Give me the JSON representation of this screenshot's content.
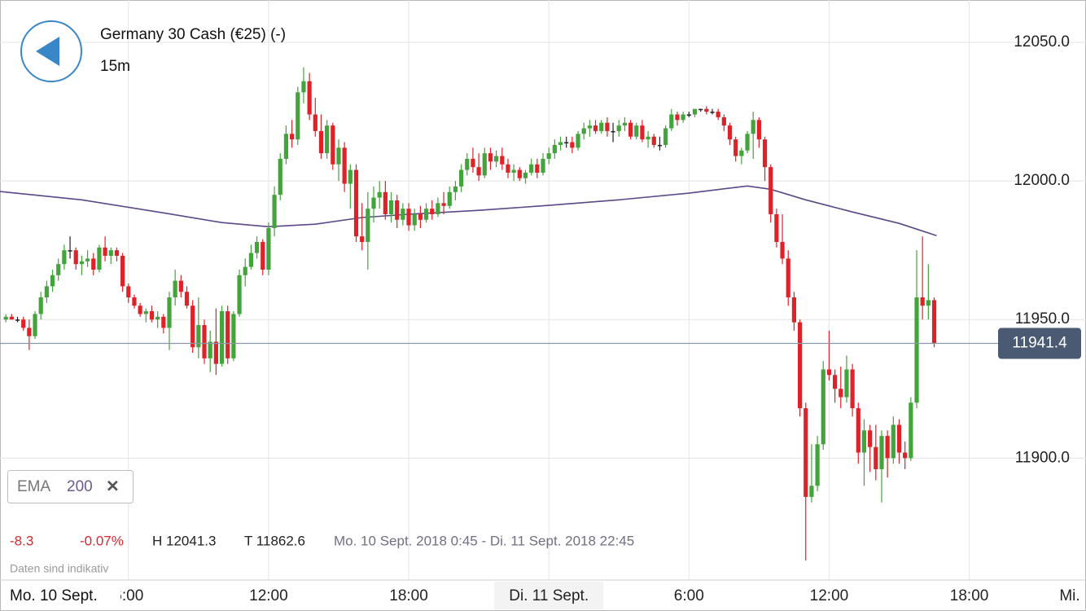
{
  "chart_data": {
    "type": "candlestick",
    "title": "Germany 30 Cash (€25) (-)",
    "subtitle": "15m",
    "x_start_label": "Mo. 10 Sept.",
    "indicator": {
      "name": "EMA",
      "period": 200
    },
    "stats": [
      "-8.3",
      "-0.07%",
      "H 12041.3",
      "T 11862.6",
      "Mo. 10 Sept. 2018 0:45 - Di. 11 Sept. 2018 22:45"
    ],
    "note": "Daten sind indikativ",
    "last_price": 11941.4,
    "up_color": "#43a43c",
    "down_color": "#de2229",
    "flat_color": "#222222",
    "xlim": [
      0.5,
      47
    ],
    "ylim": [
      11856,
      12065.3
    ],
    "xticks": [
      {
        "value": 6,
        "label": "6:00"
      },
      {
        "value": 12,
        "label": "12:00"
      },
      {
        "value": 18,
        "label": "18:00"
      },
      {
        "value": 24,
        "label": "Di. 11 Sept."
      },
      {
        "value": 30,
        "label": "6:00"
      },
      {
        "value": 36,
        "label": "12:00"
      },
      {
        "value": 42,
        "label": "18:00"
      },
      {
        "value": 48,
        "label": "Mi."
      }
    ],
    "yticks": [
      {
        "value": 11900,
        "label": "11900.0"
      },
      {
        "value": 11950,
        "label": "11950.0"
      },
      {
        "value": 12000,
        "label": "12000.0"
      },
      {
        "value": 12050,
        "label": "12050.0"
      }
    ],
    "grid": true,
    "x": [
      0.75,
      1,
      1.25,
      1.5,
      1.75,
      2,
      2.25,
      2.5,
      2.75,
      3,
      3.25,
      3.5,
      3.75,
      4,
      4.25,
      4.5,
      4.75,
      5,
      5.25,
      5.5,
      5.75,
      6,
      6.25,
      6.5,
      6.75,
      7,
      7.25,
      7.5,
      7.75,
      8,
      8.25,
      8.5,
      8.75,
      9,
      9.25,
      9.5,
      9.75,
      10,
      10.25,
      10.5,
      10.75,
      11,
      11.25,
      11.5,
      11.75,
      12,
      12.25,
      12.5,
      12.75,
      13,
      13.25,
      13.5,
      13.75,
      14,
      14.25,
      14.5,
      14.75,
      15,
      15.25,
      15.5,
      15.75,
      16,
      16.25,
      16.5,
      16.75,
      17,
      17.25,
      17.5,
      17.75,
      18,
      18.25,
      18.5,
      18.75,
      19,
      19.25,
      19.5,
      19.75,
      20,
      20.25,
      20.5,
      20.75,
      21,
      21.25,
      21.5,
      21.75,
      22,
      22.25,
      22.5,
      22.75,
      23,
      23.25,
      23.5,
      23.75,
      24,
      24.25,
      24.5,
      24.75,
      25,
      25.25,
      25.5,
      25.75,
      26,
      26.25,
      26.5,
      26.75,
      27,
      27.25,
      27.5,
      27.75,
      28,
      28.25,
      28.5,
      28.75,
      29,
      29.25,
      29.5,
      29.75,
      30,
      30.25,
      30.5,
      30.75,
      31,
      31.25,
      31.5,
      31.75,
      32,
      32.25,
      32.5,
      32.75,
      33,
      33.25,
      33.5,
      33.75,
      34,
      34.25,
      34.5,
      34.75,
      35,
      35.25,
      35.5,
      35.75,
      36,
      36.25,
      36.5,
      36.75,
      37,
      37.25,
      37.5,
      37.75,
      38,
      38.25,
      38.5,
      38.75,
      39,
      39.25,
      39.5,
      39.75,
      40,
      40.25,
      40.5
    ],
    "ohlc": [
      [
        11950,
        11952,
        11949,
        11951
      ],
      [
        11951,
        11952,
        11950,
        11950
      ],
      [
        11950,
        11951,
        11949,
        11950
      ],
      [
        11950,
        11951,
        11946,
        11947
      ],
      [
        11947,
        11950,
        11939,
        11944
      ],
      [
        11944,
        11953,
        11943,
        11952
      ],
      [
        11952,
        11960,
        11950,
        11958
      ],
      [
        11958,
        11964,
        11956,
        11962
      ],
      [
        11962,
        11968,
        11960,
        11966
      ],
      [
        11966,
        11972,
        11964,
        11970
      ],
      [
        11970,
        11977,
        11968,
        11975
      ],
      [
        11975,
        11980,
        11972,
        11975
      ],
      [
        11975,
        11976,
        11968,
        11970
      ],
      [
        11970,
        11973,
        11966,
        11971
      ],
      [
        11971,
        11975,
        11969,
        11972
      ],
      [
        11972,
        11974,
        11966,
        11968
      ],
      [
        11968,
        11977,
        11967,
        11976
      ],
      [
        11976,
        11980,
        11971,
        11973
      ],
      [
        11973,
        11976,
        11970,
        11975
      ],
      [
        11975,
        11976,
        11971,
        11973
      ],
      [
        11973,
        11974,
        11960,
        11962
      ],
      [
        11962,
        11963,
        11956,
        11958
      ],
      [
        11958,
        11959,
        11954,
        11955
      ],
      [
        11955,
        11956,
        11951,
        11952
      ],
      [
        11952,
        11954,
        11949,
        11953
      ],
      [
        11953,
        11955,
        11949,
        11950
      ],
      [
        11950,
        11953,
        11947,
        11951
      ],
      [
        11951,
        11952,
        11945,
        11947
      ],
      [
        11947,
        11960,
        11939,
        11958
      ],
      [
        11958,
        11968,
        11955,
        11964
      ],
      [
        11964,
        11966,
        11958,
        11960
      ],
      [
        11960,
        11962,
        11954,
        11955
      ],
      [
        11955,
        11957,
        11938,
        11940
      ],
      [
        11940,
        11958,
        11936,
        11948
      ],
      [
        11948,
        11950,
        11934,
        11936
      ],
      [
        11936,
        11946,
        11931,
        11942
      ],
      [
        11942,
        11954,
        11930,
        11934
      ],
      [
        11934,
        11955,
        11933,
        11953
      ],
      [
        11953,
        11955,
        11934,
        11936
      ],
      [
        11936,
        11953,
        11935,
        11952
      ],
      [
        11952,
        11968,
        11951,
        11966
      ],
      [
        11966,
        11972,
        11962,
        11969
      ],
      [
        11969,
        11977,
        11968,
        11974
      ],
      [
        11974,
        11980,
        11972,
        11978
      ],
      [
        11978,
        11979,
        11966,
        11968
      ],
      [
        11968,
        11985,
        11966,
        11983
      ],
      [
        11983,
        11998,
        11980,
        11995
      ],
      [
        11995,
        12010,
        11993,
        12008
      ],
      [
        12008,
        12020,
        12006,
        12017
      ],
      [
        12017,
        12022,
        12012,
        12015
      ],
      [
        12015,
        12034,
        12013,
        12032
      ],
      [
        12032,
        12041,
        12028,
        12036
      ],
      [
        12036,
        12039,
        12022,
        12024
      ],
      [
        12024,
        12030,
        12016,
        12018
      ],
      [
        12018,
        12024,
        12008,
        12010
      ],
      [
        12010,
        12022,
        12008,
        12020
      ],
      [
        12020,
        12021,
        12004,
        12006
      ],
      [
        12006,
        12015,
        12000,
        12012
      ],
      [
        12012,
        12014,
        11996,
        11999
      ],
      [
        11999,
        12006,
        11990,
        12004
      ],
      [
        12004,
        12006,
        11978,
        11980
      ],
      [
        11980,
        11992,
        11975,
        11978
      ],
      [
        11978,
        11996,
        11968,
        11990
      ],
      [
        11990,
        11998,
        11985,
        11994
      ],
      [
        11994,
        12000,
        11990,
        11996
      ],
      [
        11996,
        12000,
        11986,
        11988
      ],
      [
        11988,
        11996,
        11985,
        11993
      ],
      [
        11993,
        11995,
        11983,
        11986
      ],
      [
        11986,
        11992,
        11984,
        11990
      ],
      [
        11990,
        11992,
        11982,
        11984
      ],
      [
        11984,
        11990,
        11982,
        11988
      ],
      [
        11988,
        11991,
        11983,
        11986
      ],
      [
        11986,
        11992,
        11985,
        11990
      ],
      [
        11990,
        11993,
        11986,
        11988
      ],
      [
        11988,
        11994,
        11987,
        11992
      ],
      [
        11992,
        11996,
        11988,
        11991
      ],
      [
        11991,
        11998,
        11990,
        11996
      ],
      [
        11996,
        12000,
        11993,
        11998
      ],
      [
        11998,
        12006,
        11996,
        12004
      ],
      [
        12004,
        12010,
        12002,
        12008
      ],
      [
        12008,
        12012,
        12003,
        12005
      ],
      [
        12005,
        12010,
        12000,
        12002
      ],
      [
        12002,
        12012,
        12001,
        12010
      ],
      [
        12010,
        12012,
        12004,
        12007
      ],
      [
        12007,
        12011,
        12005,
        12009
      ],
      [
        12009,
        12012,
        12004,
        12006
      ],
      [
        12006,
        12008,
        12001,
        12003
      ],
      [
        12003,
        12006,
        12000,
        12004
      ],
      [
        12004,
        12005,
        12000,
        12001
      ],
      [
        12001,
        12004,
        11999,
        12003
      ],
      [
        12003,
        12008,
        12002,
        12006
      ],
      [
        12006,
        12008,
        12001,
        12003
      ],
      [
        12003,
        12010,
        12002,
        12008
      ],
      [
        12008,
        12012,
        12006,
        12010
      ],
      [
        12010,
        12015,
        12008,
        12013
      ],
      [
        12013,
        12016,
        12011,
        12014
      ],
      [
        12014,
        12016,
        12012,
        12014
      ],
      [
        12014,
        12016,
        12010,
        12012
      ],
      [
        12012,
        12018,
        12011,
        12017
      ],
      [
        12017,
        12021,
        12015,
        12019
      ],
      [
        12019,
        12022,
        12016,
        12020
      ],
      [
        12020,
        12022,
        12017,
        12018
      ],
      [
        12018,
        12022,
        12017,
        12021
      ],
      [
        12021,
        12023,
        12016,
        12018
      ],
      [
        12018,
        12021,
        12014,
        12018
      ],
      [
        12018,
        12022,
        12016,
        12020
      ],
      [
        12020,
        12023,
        12018,
        12021
      ],
      [
        12021,
        12022,
        12015,
        12016
      ],
      [
        12016,
        12021,
        12015,
        12020
      ],
      [
        12020,
        12022,
        12014,
        12015
      ],
      [
        12015,
        12018,
        12012,
        12016
      ],
      [
        12016,
        12017,
        12012,
        12013
      ],
      [
        12013,
        12016,
        12011,
        12013
      ],
      [
        12013,
        12020,
        12012,
        12019
      ],
      [
        12019,
        12026,
        12018,
        12024
      ],
      [
        12024,
        12025,
        12020,
        12022
      ],
      [
        12022,
        12025,
        12021,
        12024
      ],
      [
        12024,
        12025,
        12023,
        12024
      ],
      [
        12024,
        12026,
        12023,
        12026
      ],
      [
        12026,
        12026,
        12025,
        12026
      ],
      [
        12026,
        12027,
        12024,
        12025
      ],
      [
        12025,
        12026,
        12024,
        12025
      ],
      [
        12025,
        12026,
        12022,
        12023
      ],
      [
        12023,
        12024,
        12018,
        12020
      ],
      [
        12020,
        12021,
        12013,
        12015
      ],
      [
        12015,
        12016,
        12007,
        12009
      ],
      [
        12009,
        12012,
        12006,
        12011
      ],
      [
        12011,
        12018,
        12010,
        12017
      ],
      [
        12017,
        12025,
        12008,
        12022
      ],
      [
        12022,
        12023,
        12012,
        12015
      ],
      [
        12015,
        12016,
        12000,
        12005
      ],
      [
        12005,
        12006,
        11985,
        11988
      ],
      [
        11988,
        11990,
        11976,
        11978
      ],
      [
        11978,
        11988,
        11970,
        11972
      ],
      [
        11972,
        11975,
        11955,
        11958
      ],
      [
        11958,
        11960,
        11946,
        11949
      ],
      [
        11949,
        11950,
        11915,
        11918
      ],
      [
        11918,
        11920,
        11863,
        11886
      ],
      [
        11886,
        11905,
        11884,
        11890
      ],
      [
        11890,
        11908,
        11888,
        11905
      ],
      [
        11905,
        11935,
        11903,
        11932
      ],
      [
        11932,
        11946,
        11928,
        11930
      ],
      [
        11930,
        11932,
        11920,
        11925
      ],
      [
        11925,
        11933,
        11918,
        11922
      ],
      [
        11922,
        11937,
        11920,
        11932
      ],
      [
        11932,
        11934,
        11915,
        11918
      ],
      [
        11918,
        11920,
        11898,
        11902
      ],
      [
        11902,
        11914,
        11890,
        11910
      ],
      [
        11910,
        11912,
        11895,
        11904
      ],
      [
        11904,
        11912,
        11892,
        11896
      ],
      [
        11896,
        11910,
        11884,
        11908
      ],
      [
        11908,
        11910,
        11893,
        11900
      ],
      [
        11900,
        11915,
        11898,
        11912
      ],
      [
        11912,
        11914,
        11898,
        11902
      ],
      [
        11902,
        11906,
        11896,
        11900
      ],
      [
        11900,
        11922,
        11899,
        11920
      ],
      [
        11920,
        11975,
        11918,
        11958
      ],
      [
        11958,
        11980,
        11950,
        11955
      ],
      [
        11955,
        11970,
        11950,
        11957
      ],
      [
        11957,
        11958,
        11940,
        11941.4
      ]
    ],
    "ema": {
      "color": "#5b4886",
      "x": [
        0.5,
        4,
        7.5,
        10,
        12,
        14,
        16,
        18,
        21,
        24,
        27,
        30,
        32.5,
        33.5,
        35,
        37,
        39,
        40.6
      ],
      "values": [
        11996.2,
        11993.2,
        11988.5,
        11985,
        11983.5,
        11984.4,
        11986.8,
        11988,
        11989.4,
        11991.2,
        11993.2,
        11995.6,
        11998.2,
        11997,
        11993.2,
        11988.8,
        11984.7,
        11980.3
      ]
    }
  }
}
